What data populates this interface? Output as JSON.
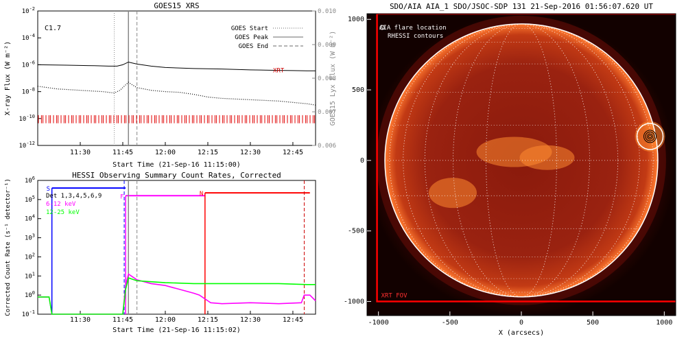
{
  "chart_data": [
    {
      "type": "line",
      "title": "GOES15 XRS",
      "xlabel": "Start Time (21-Sep-16 11:15:00)",
      "ylabel": "X-ray Flux (W m⁻²)",
      "y2label": "GOES15 Lyx Flux (W m⁻²)",
      "xticks": [
        "11:30",
        "11:45",
        "12:00",
        "12:15",
        "12:30",
        "12:45"
      ],
      "xtick_minutes": [
        30,
        45,
        60,
        75,
        90,
        105
      ],
      "xlim_minutes": [
        15,
        113
      ],
      "yscale": "log",
      "ylim_exp": [
        -12,
        -2
      ],
      "yticks": [
        {
          "base": "10",
          "exp": "-2"
        },
        {
          "base": "10",
          "exp": "-4"
        },
        {
          "base": "10",
          "exp": "-6"
        },
        {
          "base": "10",
          "exp": "-8"
        },
        {
          "base": "10",
          "exp": "-10"
        },
        {
          "base": "10",
          "exp": "-12"
        }
      ],
      "y2ticks": [
        "0.010",
        "0.009",
        "0.008",
        "0.007",
        "0.006"
      ],
      "y2lim": [
        0.006,
        0.01
      ],
      "flare_class": "C1.7",
      "xrt_label": "XRT",
      "legend": [
        {
          "name": "GOES Start",
          "style": "dotted",
          "minute": 42
        },
        {
          "name": "GOES Peak",
          "style": "solid",
          "minute": 47
        },
        {
          "name": "GOES End",
          "style": "dashed",
          "minute": 50
        }
      ],
      "series": [
        {
          "name": "long",
          "style": "solid",
          "x": [
            15,
            25,
            35,
            40,
            43,
            45,
            46,
            47,
            48,
            50,
            55,
            60,
            70,
            80,
            90,
            100,
            105,
            110,
            113
          ],
          "y_exp": [
            -6.0,
            -6.03,
            -6.07,
            -6.1,
            -6.1,
            -6.0,
            -5.9,
            -5.8,
            -5.85,
            -5.95,
            -6.1,
            -6.2,
            -6.28,
            -6.32,
            -6.38,
            -6.42,
            -6.43,
            -6.45,
            -6.45
          ]
        },
        {
          "name": "short",
          "style": "dotted",
          "x": [
            15,
            22,
            30,
            38,
            42,
            44,
            46,
            47,
            48,
            50,
            55,
            60,
            65,
            70,
            75,
            80,
            85,
            90,
            95,
            100,
            105,
            110,
            113
          ],
          "y_exp": [
            -7.6,
            -7.8,
            -7.9,
            -8.0,
            -8.1,
            -7.9,
            -7.5,
            -7.3,
            -7.45,
            -7.7,
            -7.9,
            -8.0,
            -8.05,
            -8.2,
            -8.4,
            -8.5,
            -8.55,
            -8.6,
            -8.65,
            -8.7,
            -8.8,
            -8.9,
            -9.0
          ]
        }
      ]
    },
    {
      "type": "line",
      "title": "HESSI Observing Summary Count Rates, Corrected",
      "xlabel": "Start Time (21-Sep-16 11:15:02)",
      "ylabel": "Corrected Count Rate (s⁻¹ detector⁻¹)",
      "xticks": [
        "11:30",
        "11:45",
        "12:00",
        "12:15",
        "12:30",
        "12:45"
      ],
      "xtick_minutes": [
        30,
        45,
        60,
        75,
        90,
        105
      ],
      "xlim_minutes": [
        15,
        113
      ],
      "yscale": "log",
      "ylim_exp": [
        -1,
        6
      ],
      "yticks": [
        {
          "base": "10",
          "exp": "6"
        },
        {
          "base": "10",
          "exp": "5"
        },
        {
          "base": "10",
          "exp": "4"
        },
        {
          "base": "10",
          "exp": "3"
        },
        {
          "base": "10",
          "exp": "2"
        },
        {
          "base": "10",
          "exp": "1"
        },
        {
          "base": "10",
          "exp": "0"
        },
        {
          "base": "10",
          "exp": "-1"
        }
      ],
      "detectors": "Det 1,3,4,5,6,9",
      "state_flags": [
        {
          "label": "S",
          "start": 20,
          "end": 46,
          "y_exp": 5.6,
          "color": "#0000ff"
        },
        {
          "label": "F",
          "start": 46,
          "end": 74,
          "y_exp": 5.2,
          "color": "#ff00ff"
        },
        {
          "label": "N",
          "start": 74,
          "end": 111,
          "y_exp": 5.35,
          "color": "#ff0000"
        }
      ],
      "series": [
        {
          "name": "6-12 keV",
          "color": "#ff00ff",
          "x": [
            15,
            19,
            20,
            43,
            45,
            46,
            47,
            48,
            50,
            55,
            60,
            65,
            70,
            72,
            74,
            75,
            76,
            80,
            90,
            100,
            108,
            109,
            111,
            113
          ],
          "y_exp": [
            -0.1,
            -0.1,
            -1,
            -1,
            -1,
            0.5,
            1.1,
            1.0,
            0.8,
            0.6,
            0.5,
            0.3,
            0.1,
            0.0,
            -0.2,
            -0.3,
            -0.4,
            -0.45,
            -0.4,
            -0.45,
            -0.4,
            0.0,
            0.0,
            -0.3
          ]
        },
        {
          "name": "12-25 keV",
          "color": "#00ff00",
          "x": [
            15,
            19,
            20,
            45,
            46,
            47,
            48,
            50,
            55,
            60,
            70,
            80,
            90,
            100,
            110,
            113
          ],
          "y_exp": [
            -0.1,
            -0.1,
            -1,
            -1,
            0.3,
            0.9,
            0.85,
            0.75,
            0.7,
            0.65,
            0.6,
            0.6,
            0.6,
            0.6,
            0.55,
            0.55
          ]
        }
      ],
      "flare_lines": [
        {
          "style": "dashed",
          "color": "#0000ff",
          "minute": 45.5
        },
        {
          "style": "solid",
          "color": "#888888",
          "minute": 47
        },
        {
          "style": "dashed",
          "color": "#888888",
          "minute": 50
        },
        {
          "style": "dashed",
          "color": "#cc0000",
          "minute": 109
        }
      ]
    },
    {
      "type": "heatmap",
      "title": "SDO/AIA AIA_1 SDO/JSOC-SDP 131 21-Sep-2016 01:56:07.620 UT",
      "xlabel": "X (arcsecs)",
      "xticks": [
        -1000,
        -500,
        0,
        500,
        1000
      ],
      "yticks": [
        1000,
        500,
        0,
        -500,
        -1000
      ],
      "xlim": [
        -1080,
        1080
      ],
      "ylim": [
        -1100,
        1040
      ],
      "legend": [
        "AIA flare location",
        "RHESSI contours"
      ],
      "fov_label": "XRT FOV",
      "solar_radius": 955,
      "flare_center": [
        900,
        170
      ],
      "xrt_fov": {
        "x": [
          -1010,
          1090
        ],
        "y": [
          -1000,
          1040
        ]
      },
      "colors": {
        "fov": "#ff0000",
        "limb": "#ffffff",
        "contours": "#000000"
      }
    }
  ]
}
